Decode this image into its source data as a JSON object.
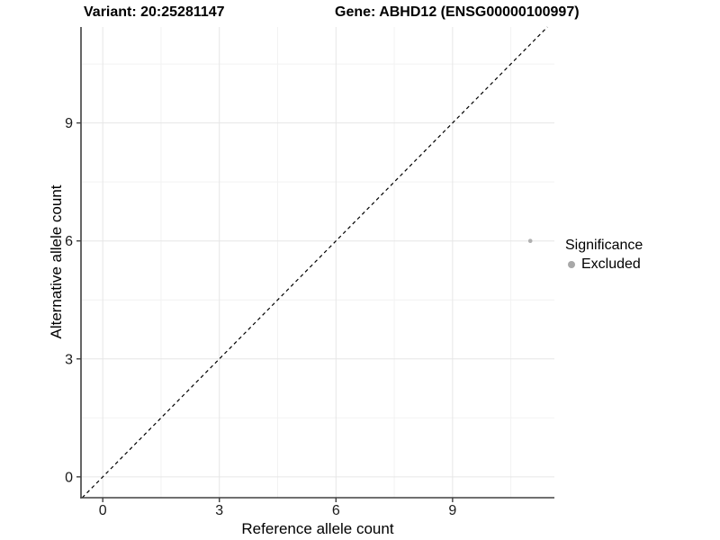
{
  "figure": {
    "background": "#ffffff"
  },
  "chart_data": {
    "type": "scatter",
    "title_left": "Variant: 20:25281147",
    "title_right": "Gene: ABHD12 (ENSG00000100997)",
    "xlabel": "Reference allele count",
    "ylabel": "Alternative allele count",
    "x_ticks": [
      0,
      3,
      6,
      9
    ],
    "y_ticks": [
      0,
      3,
      6,
      9
    ],
    "minor_ticks_x": [
      1.5,
      4.5,
      7.5,
      10.5
    ],
    "minor_ticks_y": [
      1.5,
      4.5,
      7.5,
      10.5
    ],
    "xlim": [
      -0.56,
      11.62
    ],
    "ylim": [
      -0.53,
      11.44
    ],
    "grid": true,
    "legend_position": "right",
    "points": [
      {
        "x": 11,
        "y": 6,
        "series": "Excluded"
      }
    ],
    "reference_line": {
      "slope": 1,
      "intercept": 0,
      "style": "dashed"
    },
    "series": [
      {
        "name": "Excluded",
        "color": "#b0b0b0"
      }
    ],
    "colors": {
      "axis": "#404040",
      "grid_major": "#e6e6e6",
      "grid_minor": "#f2f2f2",
      "point": "#b0b0b0",
      "dashed_line": "#000000",
      "tick_text": "#1a1a1a"
    }
  },
  "legend": {
    "title": "Significance",
    "items": [
      {
        "label": "Excluded",
        "color": "#a8a8a8",
        "marker": "circle-icon"
      }
    ]
  }
}
